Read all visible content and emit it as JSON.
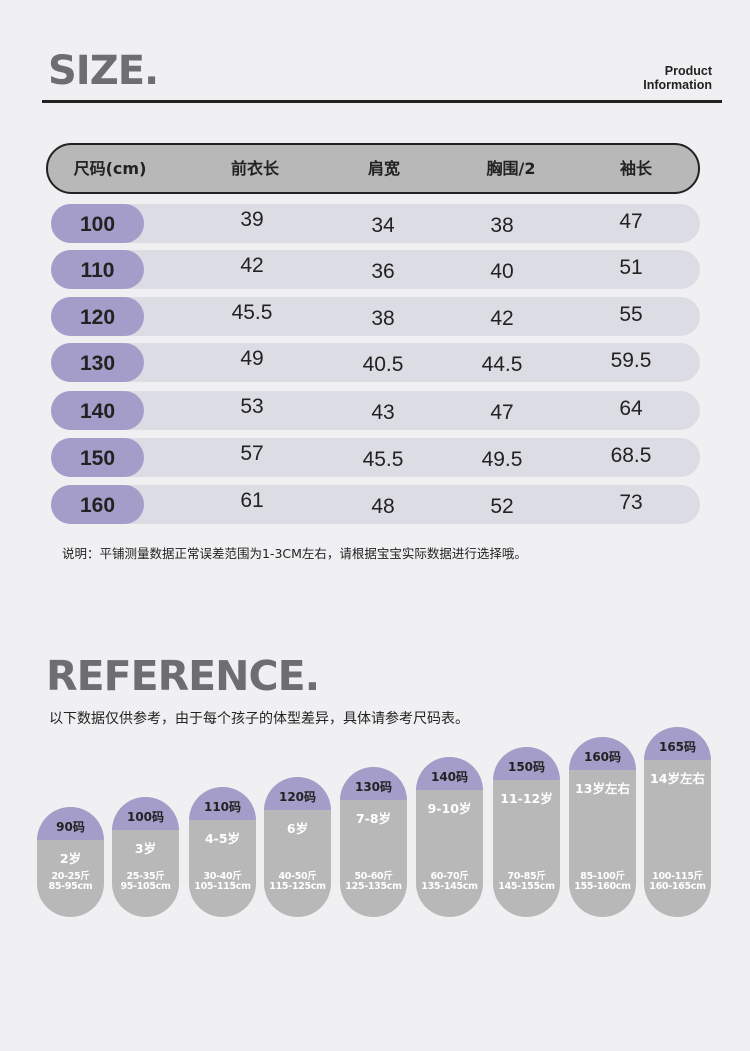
{
  "size_section": {
    "title": "SIZE.",
    "info_line1": "Product",
    "info_line2": "Information"
  },
  "table": {
    "headers": [
      "尺码(cm)",
      "前衣长",
      "肩宽",
      "胸围/2",
      "袖长"
    ],
    "rows": [
      {
        "size": "100",
        "values": [
          "39",
          "34",
          "38",
          "47"
        ]
      },
      {
        "size": "110",
        "values": [
          "42",
          "36",
          "40",
          "51"
        ]
      },
      {
        "size": "120",
        "values": [
          "45.5",
          "38",
          "42",
          "55"
        ]
      },
      {
        "size": "130",
        "values": [
          "49",
          "40.5",
          "44.5",
          "59.5"
        ]
      },
      {
        "size": "140",
        "values": [
          "53",
          "43",
          "47",
          "64"
        ]
      },
      {
        "size": "150",
        "values": [
          "57",
          "45.5",
          "49.5",
          "68.5"
        ]
      },
      {
        "size": "160",
        "values": [
          "61",
          "48",
          "52",
          "73"
        ]
      }
    ],
    "note": "说明：平铺测量数据正常误差范围为1-3CM左右，请根据宝宝实际数据进行选择哦。"
  },
  "reference": {
    "title": "REFERENCE.",
    "subtitle": "以下数据仅供参考，由于每个孩子的体型差异，具体请参考尺码表。",
    "pills": [
      {
        "size": "90码",
        "age": "2岁",
        "weight": "20-25斤",
        "height": "85-95cm"
      },
      {
        "size": "100码",
        "age": "3岁",
        "weight": "25-35斤",
        "height": "95-105cm"
      },
      {
        "size": "110码",
        "age": "4-5岁",
        "weight": "30-40斤",
        "height": "105-115cm"
      },
      {
        "size": "120码",
        "age": "6岁",
        "weight": "40-50斤",
        "height": "115-125cm"
      },
      {
        "size": "130码",
        "age": "7-8岁",
        "weight": "50-60斤",
        "height": "125-135cm"
      },
      {
        "size": "140码",
        "age": "9-10岁",
        "weight": "60-70斤",
        "height": "135-145cm"
      },
      {
        "size": "150码",
        "age": "11-12岁",
        "weight": "70-85斤",
        "height": "145-155cm"
      },
      {
        "size": "160码",
        "age": "13岁左右",
        "weight": "85-100斤",
        "height": "155-160cm"
      },
      {
        "size": "165码",
        "age": "14岁左右",
        "weight": "100-115斤",
        "height": "160-165cm"
      }
    ]
  },
  "colors": {
    "accent_purple": "#a59dc9",
    "row_bg": "#dcdce5",
    "pill_gray": "#b8b8b8",
    "title_gray": "#6e6e70"
  }
}
